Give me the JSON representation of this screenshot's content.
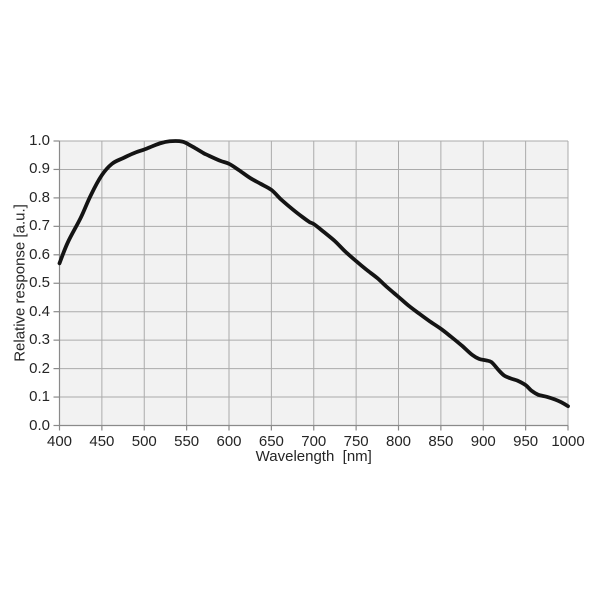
{
  "chart_data": {
    "type": "line",
    "title": "",
    "xlabel": "Wavelength  [nm]",
    "ylabel": "Relative response [a.u.]",
    "xlim": [
      400,
      1000
    ],
    "ylim": [
      0.0,
      1.0
    ],
    "grid": true,
    "legend": "none",
    "x_tick_labels": [
      "400",
      "450",
      "500",
      "550",
      "600",
      "650",
      "700",
      "750",
      "800",
      "850",
      "900",
      "950",
      "1000"
    ],
    "y_tick_labels": [
      "0.0",
      "0.1",
      "0.2",
      "0.3",
      "0.4",
      "0.5",
      "0.6",
      "0.7",
      "0.8",
      "0.9",
      "1.0"
    ],
    "colors": {
      "curve": "#141414",
      "grid": "#ababab",
      "axis": "#8a8a8a",
      "plot_background": "#f2f2f2",
      "page_background": "#ffffff",
      "text": "#252525"
    },
    "series": [
      {
        "name": "relative response",
        "x": [
          400,
          410,
          425,
          437,
          450,
          462,
          475,
          490,
          500,
          510,
          520,
          530,
          537,
          545,
          550,
          560,
          570,
          575,
          590,
          600,
          612,
          625,
          637,
          650,
          662,
          675,
          687,
          695,
          700,
          712,
          725,
          737,
          750,
          762,
          775,
          787,
          800,
          812,
          825,
          837,
          850,
          862,
          875,
          887,
          895,
          903,
          910,
          918,
          925,
          933,
          940,
          950,
          957,
          965,
          975,
          985,
          992,
          1000
        ],
        "y": [
          0.57,
          0.645,
          0.73,
          0.81,
          0.88,
          0.92,
          0.94,
          0.96,
          0.97,
          0.982,
          0.993,
          0.999,
          1.0,
          0.998,
          0.992,
          0.975,
          0.957,
          0.95,
          0.93,
          0.92,
          0.897,
          0.87,
          0.85,
          0.828,
          0.793,
          0.76,
          0.732,
          0.715,
          0.708,
          0.68,
          0.648,
          0.612,
          0.578,
          0.548,
          0.518,
          0.485,
          0.452,
          0.421,
          0.392,
          0.366,
          0.34,
          0.312,
          0.28,
          0.248,
          0.234,
          0.229,
          0.222,
          0.195,
          0.175,
          0.165,
          0.158,
          0.142,
          0.122,
          0.108,
          0.101,
          0.091,
          0.082,
          0.068
        ]
      }
    ]
  }
}
